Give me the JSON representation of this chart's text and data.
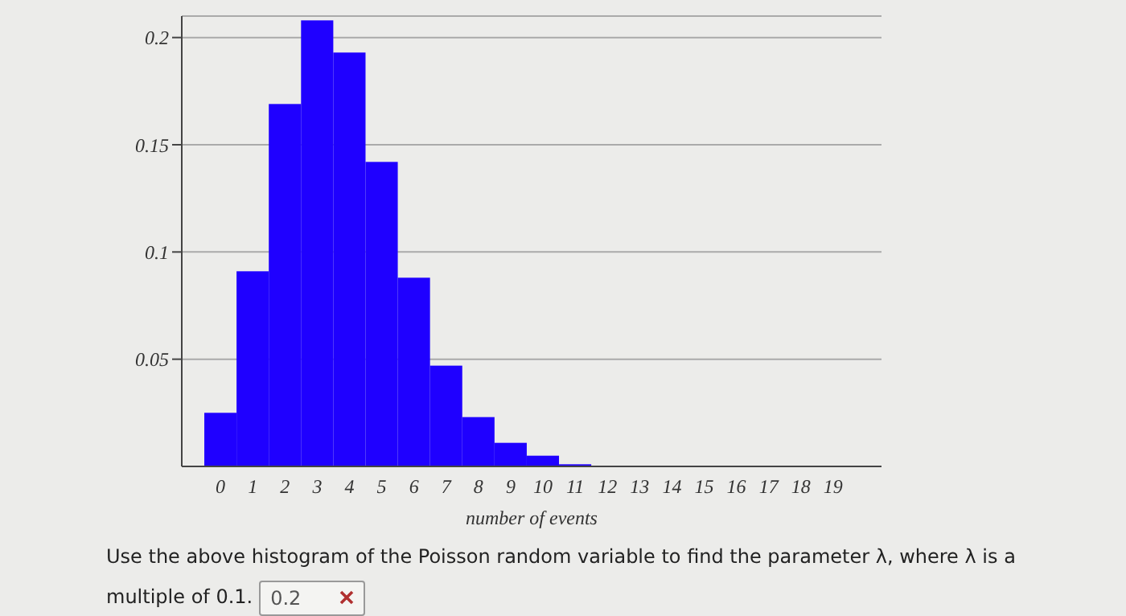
{
  "chart_data": {
    "type": "histogram",
    "xlabel": "number of events",
    "bins": [
      -0.5,
      0.5,
      1.5,
      2.5,
      3.5,
      4.5,
      5.5,
      6.5,
      7.5,
      8.5,
      9.5,
      10.5,
      11.5,
      12.5,
      13.5,
      14.5,
      15.5,
      16.5,
      17.5,
      18.5,
      19.5
    ],
    "values": [
      0.025,
      0.091,
      0.169,
      0.208,
      0.193,
      0.142,
      0.088,
      0.047,
      0.023,
      0.011,
      0.005,
      0.001,
      0,
      0,
      0,
      0,
      0,
      0,
      0,
      0
    ],
    "color": "#1f00ff",
    "xlim": [
      -1.2,
      20.5
    ],
    "xticks": [
      0,
      1,
      2,
      3,
      4,
      5,
      6,
      7,
      8,
      9,
      10,
      11,
      12,
      13,
      14,
      15,
      16,
      17,
      18,
      19
    ],
    "ylim": [
      0,
      0.21
    ],
    "yticks": [
      0.05,
      0.1,
      0.15,
      0.2
    ],
    "grid": "y",
    "annotations": [
      "Use the above histogram of the Poisson random variable to find the parameter λ, where λ is a multiple of 0.1.",
      "0.2"
    ]
  }
}
